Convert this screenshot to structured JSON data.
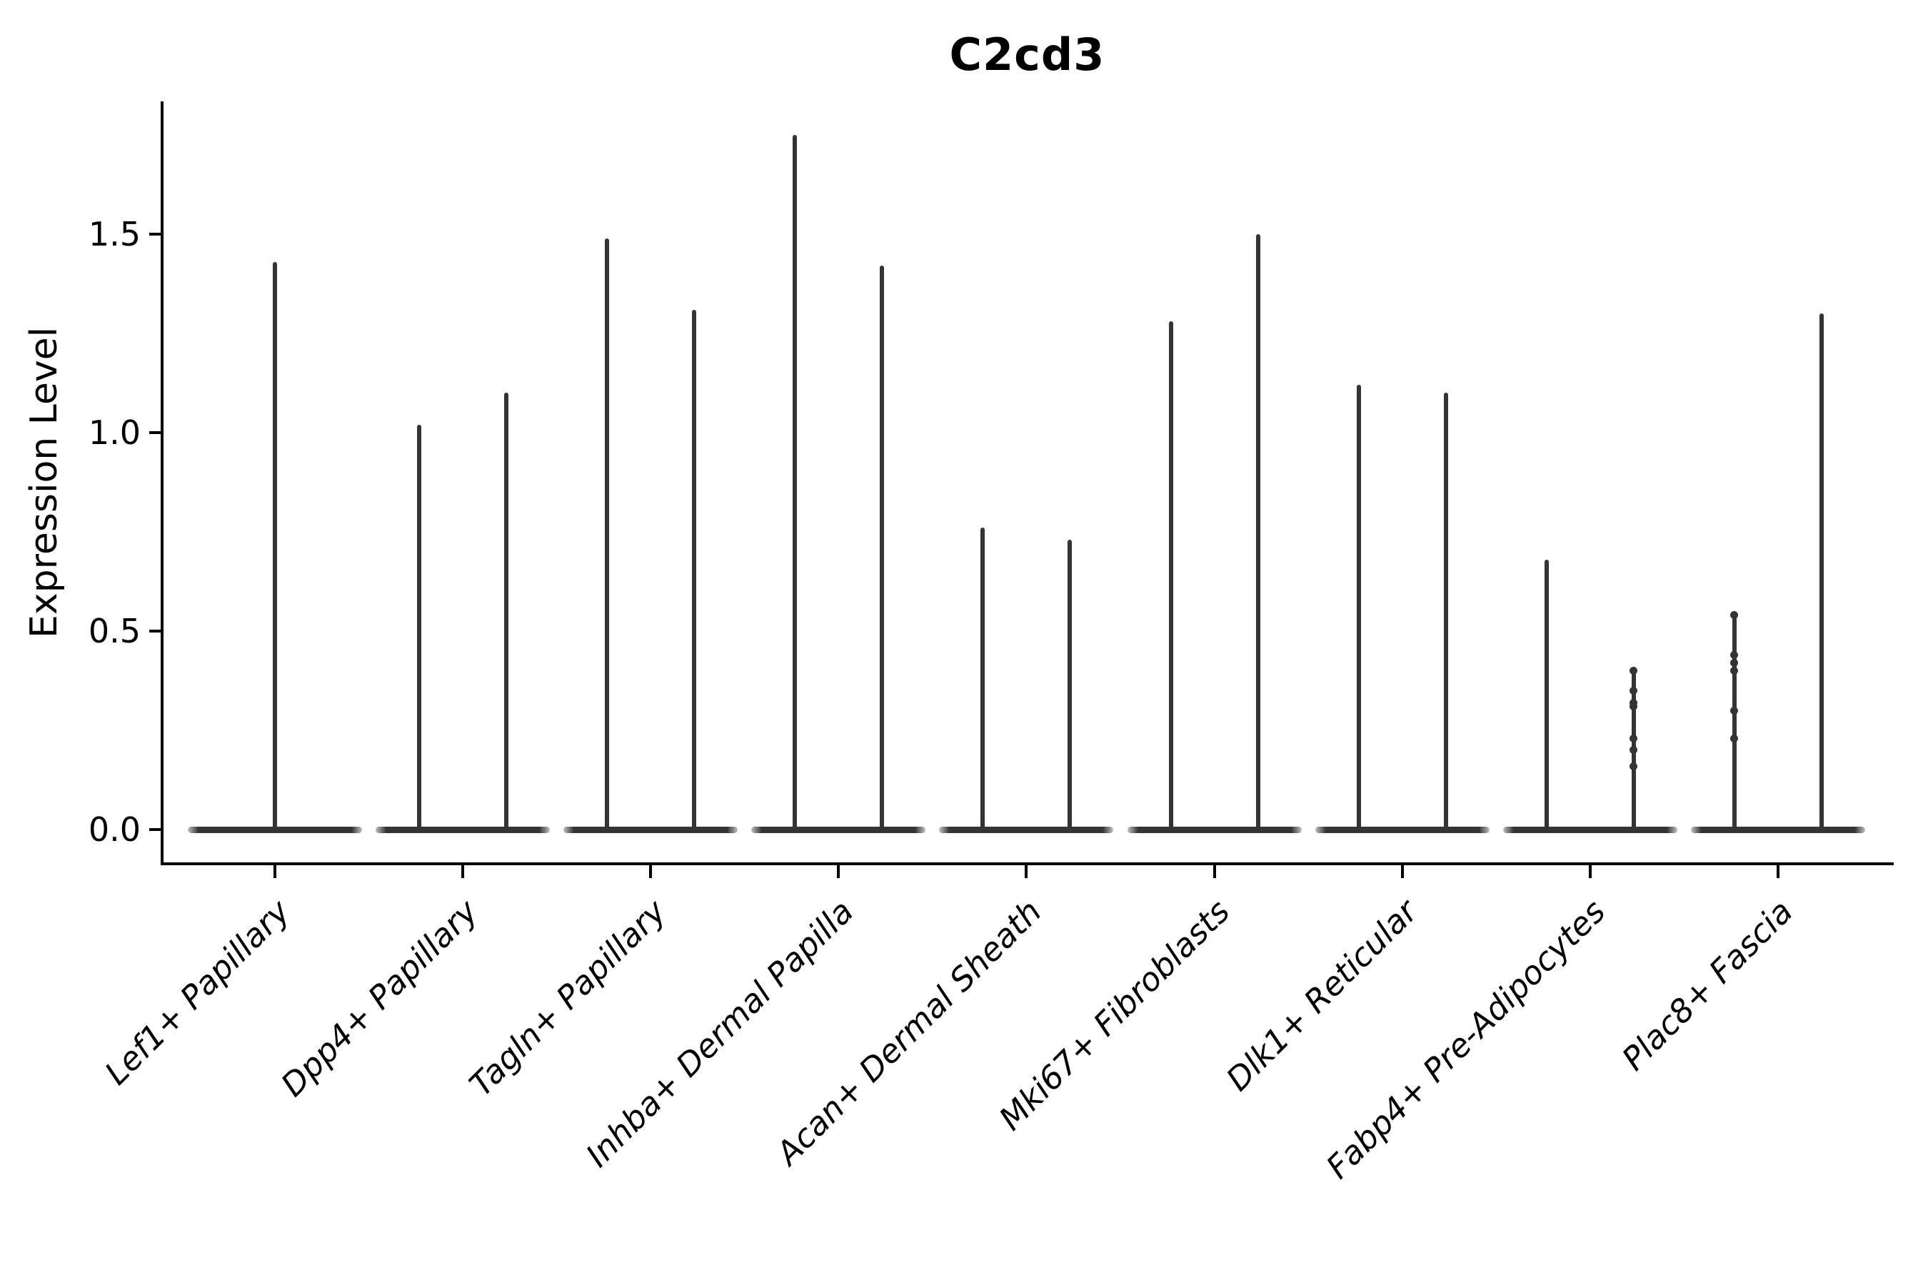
{
  "chart_data": {
    "type": "violin",
    "title": "C2cd3",
    "xlabel": "",
    "ylabel": "Expression Level",
    "ytick_labels": [
      "0.0",
      "0.5",
      "1.0",
      "1.5"
    ],
    "ytick_values": [
      0.0,
      0.5,
      1.0,
      1.5
    ],
    "ylim": [
      -0.09,
      1.84
    ],
    "grid": false,
    "legend": null,
    "categories": [
      "Lef1+ Papillary",
      "Dpp4+ Papillary",
      "Tagln+ Papillary",
      "Inhba+ Dermal Papilla",
      "Acan+ Dermal Sheath",
      "Mki67+ Fibroblasts",
      "Dlk1+ Reticular",
      "Fabp4+ Pre-Adipocytes",
      "Plac8+ Fascia"
    ],
    "groups": [
      {
        "category": "Lef1+ Papillary",
        "violins": [
          {
            "max": 1.43,
            "points": []
          }
        ]
      },
      {
        "category": "Dpp4+ Papillary",
        "violins": [
          {
            "max": 1.02,
            "points": []
          },
          {
            "max": 1.1,
            "points": []
          }
        ]
      },
      {
        "category": "Tagln+ Papillary",
        "violins": [
          {
            "max": 1.49,
            "points": []
          },
          {
            "max": 1.31,
            "points": []
          }
        ]
      },
      {
        "category": "Inhba+ Dermal Papilla",
        "violins": [
          {
            "max": 1.75,
            "points": []
          },
          {
            "max": 1.42,
            "points": []
          }
        ]
      },
      {
        "category": "Acan+ Dermal Sheath",
        "violins": [
          {
            "max": 0.76,
            "points": []
          },
          {
            "max": 0.73,
            "points": []
          }
        ]
      },
      {
        "category": "Mki67+ Fibroblasts",
        "violins": [
          {
            "max": 1.28,
            "points": []
          },
          {
            "max": 1.5,
            "points": []
          }
        ]
      },
      {
        "category": "Dlk1+ Reticular",
        "violins": [
          {
            "max": 1.12,
            "points": []
          },
          {
            "max": 1.1,
            "points": []
          }
        ]
      },
      {
        "category": "Fabp4+ Pre-Adipocytes",
        "violins": [
          {
            "max": 0.68,
            "points": []
          },
          {
            "max": 0.41,
            "points": [
              0.4,
              0.35,
              0.32,
              0.31,
              0.23,
              0.2,
              0.16
            ]
          }
        ]
      },
      {
        "category": "Plac8+ Fascia",
        "violins": [
          {
            "max": 0.55,
            "points": [
              0.54,
              0.44,
              0.42,
              0.4,
              0.3,
              0.23
            ]
          },
          {
            "max": 1.3,
            "points": []
          }
        ]
      }
    ],
    "line_color": "#343434",
    "axis_color": "#000000",
    "background_color": "#ffffff"
  }
}
